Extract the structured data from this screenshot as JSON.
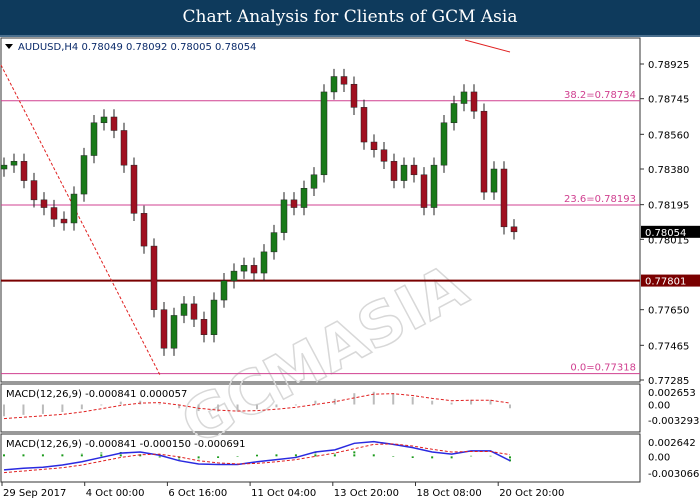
{
  "header": {
    "title": "Chart Analysis for Clients of GCM Asia"
  },
  "watermark": "GCMASIA",
  "chart_data": {
    "type": "candlestick",
    "symbol_info": "AUDUSD,H4  0.78049 0.78092 0.78005 0.78054",
    "price_ticks": [
      "0.78925",
      "0.78745",
      "0.78560",
      "0.78380",
      "0.78195",
      "0.78015",
      "0.77650",
      "0.77465",
      "0.77285"
    ],
    "price_tick_values": [
      0.78925,
      0.78745,
      0.7856,
      0.7838,
      0.78195,
      0.78015,
      0.7765,
      0.77465,
      0.77285
    ],
    "ylim": [
      0.77285,
      0.78925
    ],
    "current_price": {
      "label": "0.78054",
      "value": 0.78054
    },
    "support_level": {
      "label": "0.77801",
      "value": 0.77801,
      "color": "#7a0000"
    },
    "fibonacci": [
      {
        "label": "38.2=0.78734",
        "value": 0.78734
      },
      {
        "label": "23.6=0.78193",
        "value": 0.78193
      },
      {
        "label": "0.0=0.77318",
        "value": 0.77318
      }
    ],
    "fib_color": "#d04090",
    "first_open": 0.7838,
    "closes": [
      0.784,
      0.7842,
      0.7832,
      0.7822,
      0.7818,
      0.7812,
      0.781,
      0.7825,
      0.7845,
      0.7862,
      0.7865,
      0.7858,
      0.784,
      0.7815,
      0.7798,
      0.7765,
      0.7745,
      0.7762,
      0.7768,
      0.776,
      0.7752,
      0.777,
      0.778,
      0.7785,
      0.7788,
      0.7784,
      0.7795,
      0.7805,
      0.7822,
      0.7818,
      0.7828,
      0.7835,
      0.7878,
      0.7886,
      0.7882,
      0.787,
      0.7852,
      0.7848,
      0.7842,
      0.7832,
      0.784,
      0.7835,
      0.7818,
      0.784,
      0.7862,
      0.7872,
      0.7878,
      0.7868,
      0.7826,
      0.7838,
      0.7808,
      0.78054
    ],
    "bull_color": "#1a7a1a",
    "bear_color": "#a01020",
    "time_labels": [
      "29 Sep 2017",
      "4 Oct 00:00",
      "6 Oct 16:00",
      "11 Oct 04:00",
      "13 Oct 20:00",
      "18 Oct 08:00",
      "20 Oct 20:00"
    ],
    "macd1": {
      "label": "MACD(12,26,9) -0.000841 0.000057",
      "ticks": [
        "0.002653",
        "0.00",
        "-0.003293"
      ],
      "ylim": [
        -0.003293,
        0.002653
      ]
    },
    "macd2": {
      "label": "MACD(12,26,9) -0.000841 -0.000150 -0.000691",
      "ticks": [
        "0.002642",
        "0.00",
        "-0.003066"
      ],
      "ylim": [
        -0.003066,
        0.002642
      ]
    },
    "macd_main": [
      -0.0025,
      -0.0022,
      -0.002,
      -0.0016,
      -0.001,
      -0.0002,
      0.0006,
      0.0008,
      0.0002,
      -0.0008,
      -0.0014,
      -0.0015,
      -0.0015,
      -0.001,
      -0.0006,
      -0.0002,
      0.0008,
      0.0012,
      0.0024,
      0.0027,
      0.0022,
      0.0016,
      0.0008,
      0.0004,
      0.001,
      0.001,
      -0.0008
    ],
    "macd_signal": [
      -0.003,
      -0.0027,
      -0.0024,
      -0.0021,
      -0.0016,
      -0.0009,
      -0.0002,
      0.0003,
      0.0004,
      -0.0001,
      -0.0008,
      -0.0012,
      -0.0014,
      -0.0013,
      -0.001,
      -0.0006,
      0.0,
      0.0006,
      0.0014,
      0.0022,
      0.0023,
      0.0019,
      0.0013,
      0.0008,
      0.0009,
      0.0009,
      0.0003
    ]
  }
}
